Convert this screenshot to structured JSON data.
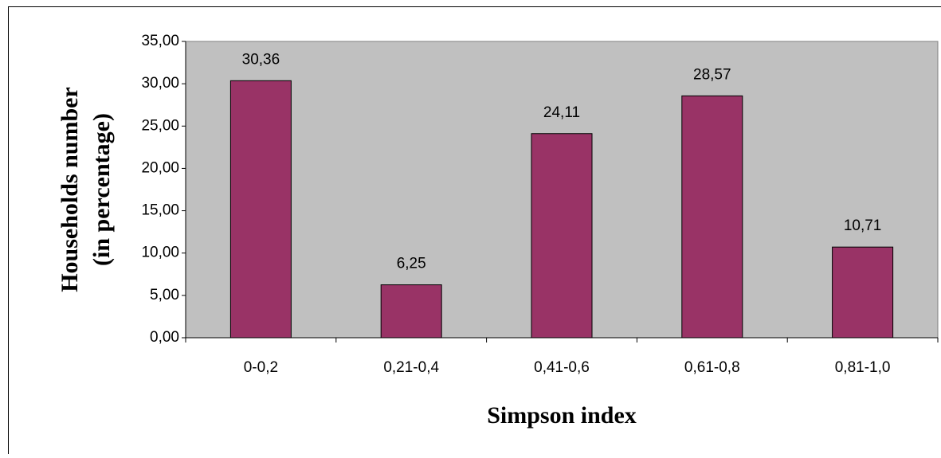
{
  "chart_data": {
    "type": "bar",
    "ylabel": [
      "Households number",
      "(in percentage)"
    ],
    "xlabel": "Simpson index",
    "categories": [
      "0-0,2",
      "0,21-0,4",
      "0,41-0,6",
      "0,61-0,8",
      "0,81-1,0"
    ],
    "values": [
      30.36,
      6.25,
      24.11,
      28.57,
      10.71
    ],
    "value_labels": [
      "30,36",
      "6,25",
      "24,11",
      "28,57",
      "10,71"
    ],
    "color": "#993366",
    "plot_background": "#c0c0c0",
    "ylim": [
      0,
      35
    ],
    "yticks": [
      {
        "value": 0,
        "label": "0,00"
      },
      {
        "value": 5,
        "label": "5,00"
      },
      {
        "value": 10,
        "label": "10,00"
      },
      {
        "value": 15,
        "label": "15,00"
      },
      {
        "value": 20,
        "label": "20,00"
      },
      {
        "value": 25,
        "label": "25,00"
      },
      {
        "value": 30,
        "label": "30,00"
      },
      {
        "value": 35,
        "label": "35,00"
      }
    ],
    "grid": false
  }
}
